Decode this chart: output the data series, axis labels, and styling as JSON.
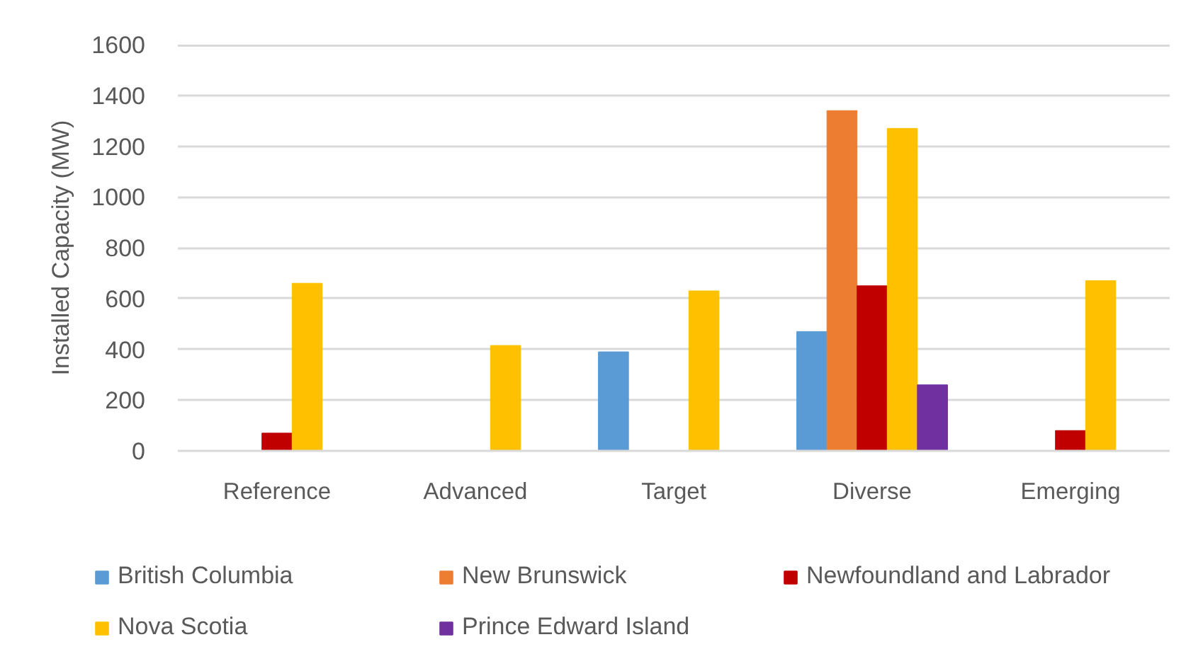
{
  "chart_data": {
    "type": "bar",
    "ylabel": "Installed Capacity (MW)",
    "categories": [
      "Reference",
      "Advanced",
      "Target",
      "Diverse",
      "Emerging"
    ],
    "series": [
      {
        "name": "British Columbia",
        "color": "#5b9bd5",
        "values": [
          null,
          null,
          390,
          470,
          null
        ]
      },
      {
        "name": "New Brunswick",
        "color": "#ed7d31",
        "values": [
          null,
          null,
          null,
          1340,
          null
        ]
      },
      {
        "name": "Newfoundland and Labrador",
        "color": "#c00000",
        "values": [
          70,
          null,
          null,
          650,
          80
        ]
      },
      {
        "name": "Nova Scotia",
        "color": "#ffc000",
        "values": [
          660,
          415,
          630,
          1270,
          670
        ]
      },
      {
        "name": "Prince Edward Island",
        "color": "#7030a0",
        "values": [
          null,
          null,
          null,
          260,
          null
        ]
      }
    ],
    "ylim": [
      0,
      1600
    ],
    "yticks": [
      0,
      200,
      400,
      600,
      800,
      1000,
      1200,
      1400,
      1600
    ],
    "grid": "y",
    "legend": "bottom"
  }
}
